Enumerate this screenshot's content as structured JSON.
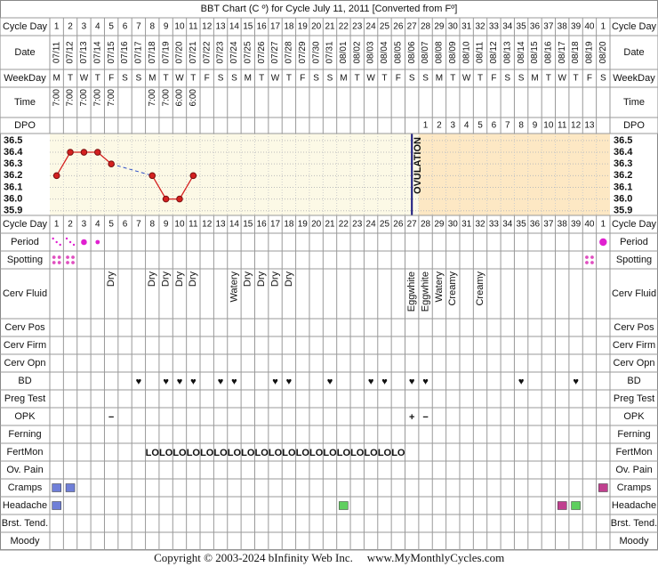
{
  "title": "BBT Chart (C º) for Cycle July 11, 2011  [Converted from Fº]",
  "header_labels": {
    "cycle_day": "Cycle Day",
    "date": "Date",
    "weekday": "WeekDay",
    "time": "Time",
    "dpo": "DPO"
  },
  "days": {
    "cycle_day": [
      1,
      2,
      3,
      4,
      5,
      6,
      7,
      8,
      9,
      10,
      11,
      12,
      13,
      14,
      15,
      16,
      17,
      18,
      19,
      20,
      21,
      22,
      23,
      24,
      25,
      26,
      27,
      28,
      29,
      30,
      31,
      32,
      33,
      34,
      35,
      36,
      37,
      38,
      39,
      40,
      1
    ],
    "date": [
      "07/11",
      "07/12",
      "07/13",
      "07/14",
      "07/15",
      "07/16",
      "07/17",
      "07/18",
      "07/19",
      "07/20",
      "07/21",
      "07/22",
      "07/23",
      "07/24",
      "07/25",
      "07/26",
      "07/27",
      "07/28",
      "07/29",
      "07/30",
      "07/31",
      "08/01",
      "08/02",
      "08/03",
      "08/04",
      "08/05",
      "08/06",
      "08/07",
      "08/08",
      "08/09",
      "08/10",
      "08/11",
      "08/12",
      "08/13",
      "08/14",
      "08/15",
      "08/16",
      "08/17",
      "08/18",
      "08/19",
      "08/20"
    ],
    "weekday": [
      "M",
      "T",
      "W",
      "T",
      "F",
      "S",
      "S",
      "M",
      "T",
      "W",
      "T",
      "F",
      "S",
      "S",
      "M",
      "T",
      "W",
      "T",
      "F",
      "S",
      "S",
      "M",
      "T",
      "W",
      "T",
      "F",
      "S",
      "S",
      "M",
      "T",
      "W",
      "T",
      "F",
      "S",
      "S",
      "M",
      "T",
      "W",
      "T",
      "F",
      "S"
    ],
    "time": [
      "7:00",
      "7:00",
      "7:00",
      "7:00",
      "7:00",
      null,
      null,
      "7:00",
      "7:00",
      "6:00",
      "6:00",
      null,
      null,
      null,
      null,
      null,
      null,
      null,
      null,
      null,
      null,
      null,
      null,
      null,
      null,
      null,
      null,
      null,
      null,
      null,
      null,
      null,
      null,
      null,
      null,
      null,
      null,
      null,
      null,
      null,
      null
    ],
    "dpo": [
      null,
      null,
      null,
      null,
      null,
      null,
      null,
      null,
      null,
      null,
      null,
      null,
      null,
      null,
      null,
      null,
      null,
      null,
      null,
      null,
      null,
      null,
      null,
      null,
      null,
      null,
      null,
      1,
      2,
      3,
      4,
      5,
      6,
      7,
      8,
      9,
      10,
      11,
      12,
      13,
      null
    ]
  },
  "chart_data": {
    "type": "line",
    "values": [
      36.2,
      36.4,
      36.4,
      36.4,
      36.3,
      null,
      null,
      36.2,
      36.0,
      36.0,
      36.2,
      null,
      null,
      null,
      null,
      null,
      null,
      null,
      null,
      null,
      null,
      null,
      null,
      null,
      null,
      null,
      null,
      null,
      null,
      null,
      null,
      null,
      null,
      null,
      null,
      null,
      null,
      null,
      null,
      null,
      null
    ],
    "ylim": [
      35.86,
      36.56
    ],
    "yticks": [
      36.5,
      36.4,
      36.3,
      36.2,
      36.1,
      {
        "value": 36,
        "label": "36.0"
      },
      35.9
    ],
    "color": "#d42020",
    "gap_color": "#3050c8",
    "ovulation_day": 27,
    "ovulation_label": "OVULATION",
    "ovulation_color": "#1a1a80",
    "grid": true
  },
  "rows": [
    {
      "label": "Period",
      "kind": "period",
      "color": "#e020d0",
      "values": [
        1,
        1,
        3,
        2,
        null,
        null,
        null,
        null,
        null,
        null,
        null,
        null,
        null,
        null,
        null,
        null,
        null,
        null,
        null,
        null,
        null,
        null,
        null,
        null,
        null,
        null,
        null,
        null,
        null,
        null,
        null,
        null,
        null,
        null,
        null,
        null,
        null,
        null,
        null,
        null,
        4
      ]
    },
    {
      "label": "Spotting",
      "kind": "spotting",
      "color": "#e050c0",
      "values": [
        1,
        1,
        null,
        null,
        null,
        null,
        null,
        null,
        null,
        null,
        null,
        null,
        null,
        null,
        null,
        null,
        null,
        null,
        null,
        null,
        null,
        null,
        null,
        null,
        null,
        null,
        null,
        null,
        null,
        null,
        null,
        null,
        null,
        null,
        null,
        null,
        null,
        null,
        null,
        1,
        null
      ]
    },
    {
      "label": "Cerv Fluid",
      "kind": "vtext",
      "color": "#111111",
      "values": [
        null,
        null,
        null,
        null,
        "Dry",
        null,
        null,
        "Dry",
        "Dry",
        "Dry",
        "Dry",
        null,
        null,
        "Watery",
        "Dry",
        "Dry",
        "Dry",
        "Dry",
        null,
        null,
        null,
        null,
        null,
        null,
        null,
        null,
        "Eggwhite",
        "Eggwhite",
        "Watery",
        "Creamy",
        null,
        "Creamy",
        null,
        null,
        null,
        null,
        null,
        null,
        null,
        null,
        null
      ]
    },
    {
      "label": "Cerv Pos"
    },
    {
      "label": "Cerv Firm"
    },
    {
      "label": "Cerv Opn"
    },
    {
      "label": "BD",
      "kind": "text",
      "color": "#e0407f",
      "values": [
        null,
        null,
        null,
        null,
        null,
        null,
        "♥",
        null,
        "♥",
        "♥",
        "♥",
        null,
        "♥",
        "♥",
        null,
        null,
        "♥",
        "♥",
        null,
        null,
        "♥",
        null,
        null,
        "♥",
        "♥",
        null,
        "♥",
        "♥",
        null,
        null,
        null,
        null,
        null,
        null,
        "♥",
        null,
        null,
        null,
        "♥",
        null,
        null
      ]
    },
    {
      "label": "Preg Test"
    },
    {
      "label": "OPK",
      "kind": "text",
      "color": "#5a3cc8",
      "values": [
        null,
        null,
        null,
        null,
        "−",
        null,
        null,
        null,
        null,
        null,
        null,
        null,
        null,
        null,
        null,
        null,
        null,
        null,
        null,
        null,
        null,
        null,
        null,
        null,
        null,
        null,
        "+",
        "−",
        null,
        null,
        null,
        null,
        null,
        null,
        null,
        null,
        null,
        null,
        null,
        null,
        null
      ]
    },
    {
      "label": "Ferning"
    },
    {
      "label": "FertMon",
      "kind": "text",
      "color": "#2a8a2a",
      "values": [
        null,
        null,
        null,
        null,
        null,
        null,
        null,
        "LO",
        "LO",
        "LO",
        "LO",
        "LO",
        "LO",
        "LO",
        "LO",
        "LO",
        "LO",
        "LO",
        "LO",
        "LO",
        "LO",
        "LO",
        "LO",
        "LO",
        "LO",
        "LO",
        null,
        null,
        null,
        null,
        null,
        null,
        null,
        null,
        null,
        null,
        null,
        null,
        null,
        null,
        null
      ]
    },
    {
      "label": "Ov. Pain"
    },
    {
      "label": "Cramps",
      "kind": "square",
      "values": [
        "#6f7fd8",
        "#6f7fd8",
        null,
        null,
        null,
        null,
        null,
        null,
        null,
        null,
        null,
        null,
        null,
        null,
        null,
        null,
        null,
        null,
        null,
        null,
        null,
        null,
        null,
        null,
        null,
        null,
        null,
        null,
        null,
        null,
        null,
        null,
        null,
        null,
        null,
        null,
        null,
        null,
        null,
        null,
        "#c0408f"
      ]
    },
    {
      "label": "Headache",
      "kind": "square",
      "values": [
        "#6f7fd8",
        null,
        null,
        null,
        null,
        null,
        null,
        null,
        null,
        null,
        null,
        null,
        null,
        null,
        null,
        null,
        null,
        null,
        null,
        null,
        null,
        "#5fcf5f",
        null,
        null,
        null,
        null,
        null,
        null,
        null,
        null,
        null,
        null,
        null,
        null,
        null,
        null,
        null,
        "#c0408f",
        "#5fcf5f",
        null,
        null
      ]
    },
    {
      "label": "Brst. Tend."
    },
    {
      "label": "Moody"
    }
  ],
  "footer": {
    "copyright": "Copyright © 2003-2024 bInfinity Web Inc.",
    "site": "www.MyMonthlyCycles.com"
  }
}
